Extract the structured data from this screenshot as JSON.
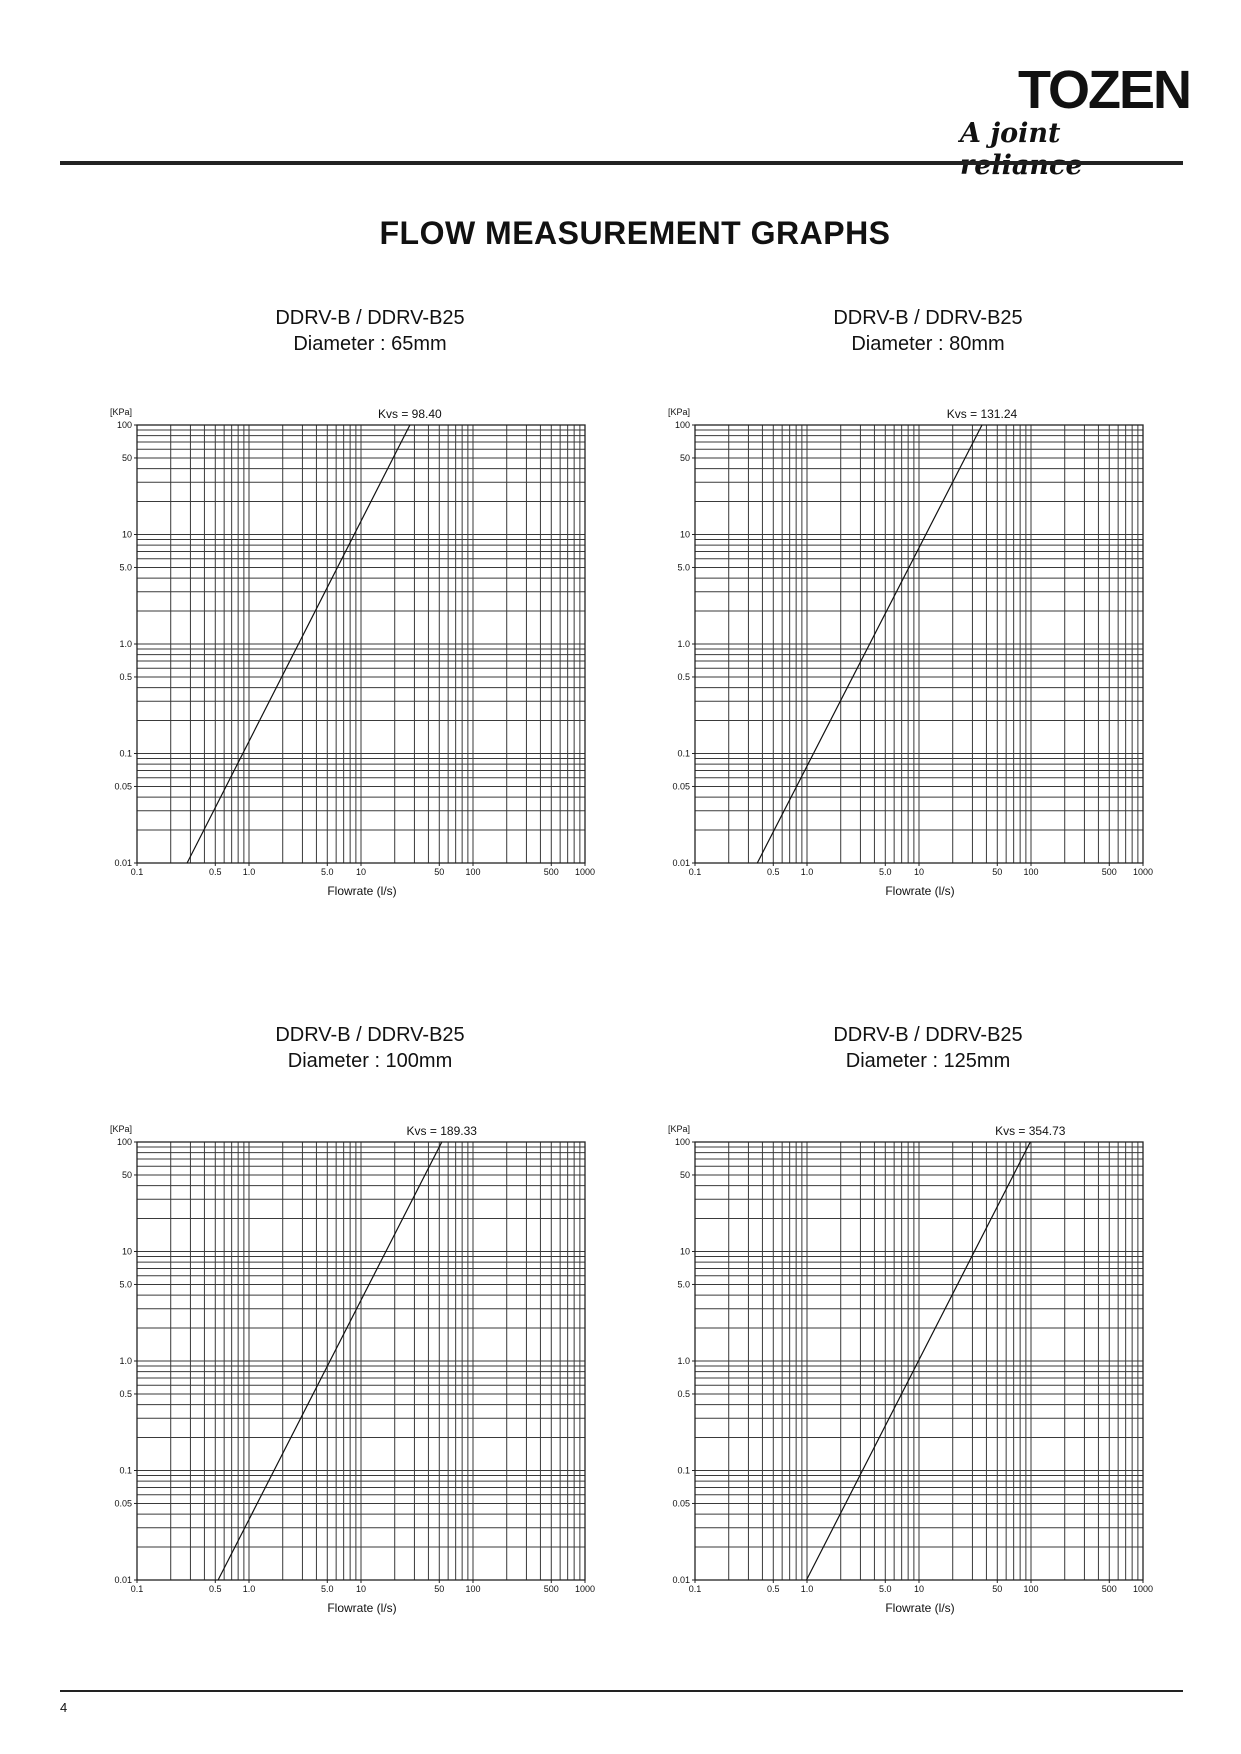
{
  "header": {
    "brand": "TOZEN",
    "tagline": "A joint reliance"
  },
  "page_title": "FLOW MEASUREMENT GRAPHS",
  "footer": {
    "page_number": "4"
  },
  "chart_data": [
    {
      "type": "line",
      "heading": "DDRV-B / DDRV-B25",
      "subheading": "Diameter : 65mm",
      "title": "Kvs = 98.40",
      "xlabel": "Flowrate (l/s)",
      "ylabel": "[KPa]",
      "x_scale": "log",
      "y_scale": "log",
      "xlim": [
        0.1,
        1000
      ],
      "ylim": [
        0.01,
        100
      ],
      "x_ticks": [
        "0.1",
        "0.5",
        "1.0",
        "5.0",
        "10",
        "50",
        "100",
        "500",
        "1000"
      ],
      "y_ticks": [
        "0.01",
        "0.05",
        "0.1",
        "0.5",
        "1.0",
        "5.0",
        "10",
        "50",
        "100"
      ],
      "grid": true,
      "series": [
        {
          "x": [
            0.28,
            27.3
          ],
          "y": [
            0.01,
            100
          ]
        }
      ]
    },
    {
      "type": "line",
      "heading": "DDRV-B / DDRV-B25",
      "subheading": "Diameter : 80mm",
      "title": "Kvs = 131.24",
      "xlabel": "Flowrate (l/s)",
      "ylabel": "[KPa]",
      "x_scale": "log",
      "y_scale": "log",
      "xlim": [
        0.1,
        1000
      ],
      "ylim": [
        0.01,
        100
      ],
      "x_ticks": [
        "0.1",
        "0.5",
        "1.0",
        "5.0",
        "10",
        "50",
        "100",
        "500",
        "1000"
      ],
      "y_ticks": [
        "0.01",
        "0.05",
        "0.1",
        "0.5",
        "1.0",
        "5.0",
        "10",
        "50",
        "100"
      ],
      "grid": true,
      "series": [
        {
          "x": [
            0.36,
            36.5
          ],
          "y": [
            0.01,
            100
          ]
        }
      ]
    },
    {
      "type": "line",
      "heading": "DDRV-B / DDRV-B25",
      "subheading": "Diameter : 100mm",
      "title": "Kvs = 189.33",
      "xlabel": "Flowrate (l/s)",
      "ylabel": "[KPa]",
      "x_scale": "log",
      "y_scale": "log",
      "xlim": [
        0.1,
        1000
      ],
      "ylim": [
        0.01,
        100
      ],
      "x_ticks": [
        "0.1",
        "0.5",
        "1.0",
        "5.0",
        "10",
        "50",
        "100",
        "500",
        "1000"
      ],
      "y_ticks": [
        "0.01",
        "0.05",
        "0.1",
        "0.5",
        "1.0",
        "5.0",
        "10",
        "50",
        "100"
      ],
      "grid": true,
      "series": [
        {
          "x": [
            0.53,
            52.6
          ],
          "y": [
            0.01,
            100
          ]
        }
      ]
    },
    {
      "type": "line",
      "heading": "DDRV-B / DDRV-B25",
      "subheading": "Diameter : 125mm",
      "title": "Kvs = 354.73",
      "xlabel": "Flowrate (l/s)",
      "ylabel": "[KPa]",
      "x_scale": "log",
      "y_scale": "log",
      "xlim": [
        0.1,
        1000
      ],
      "ylim": [
        0.01,
        100
      ],
      "x_ticks": [
        "0.1",
        "0.5",
        "1.0",
        "5.0",
        "10",
        "50",
        "100",
        "500",
        "1000"
      ],
      "y_ticks": [
        "0.01",
        "0.05",
        "0.1",
        "0.5",
        "1.0",
        "5.0",
        "10",
        "50",
        "100"
      ],
      "grid": true,
      "series": [
        {
          "x": [
            0.99,
            98.5
          ],
          "y": [
            0.01,
            100
          ]
        }
      ]
    }
  ]
}
